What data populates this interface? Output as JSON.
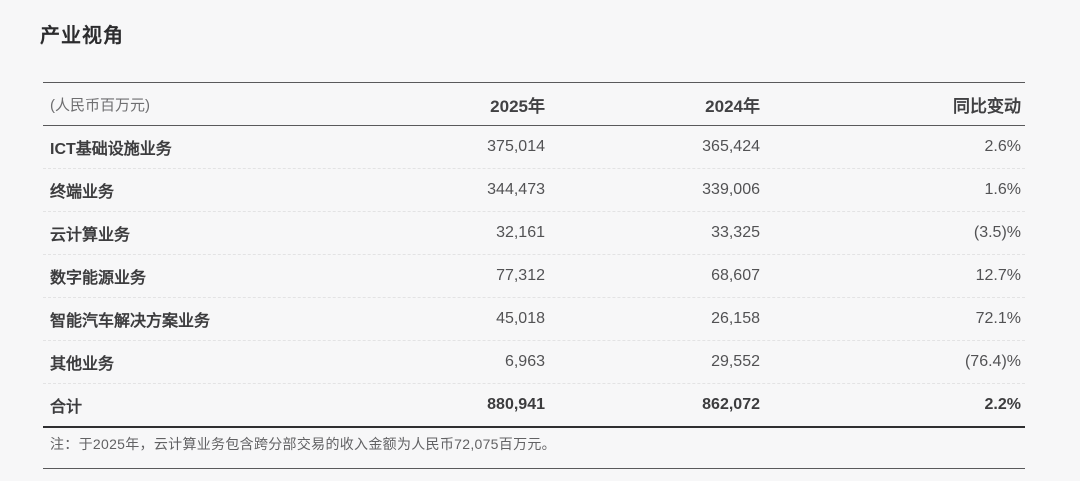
{
  "page": {
    "title": "产业视角"
  },
  "table": {
    "unit_label": "(人民币百万元)",
    "columns": {
      "y2025": "2025年",
      "y2024": "2024年",
      "yoy": "同比变动"
    },
    "rows": [
      {
        "label": "ICT基础设施业务",
        "y2025": "375,014",
        "y2024": "365,424",
        "change": "2.6%"
      },
      {
        "label": "终端业务",
        "y2025": "344,473",
        "y2024": "339,006",
        "change": "1.6%"
      },
      {
        "label": "云计算业务",
        "y2025": "32,161",
        "y2024": "33,325",
        "change": "(3.5)%"
      },
      {
        "label": "数字能源业务",
        "y2025": "77,312",
        "y2024": "68,607",
        "change": "12.7%"
      },
      {
        "label": "智能汽车解决方案业务",
        "y2025": "45,018",
        "y2024": "26,158",
        "change": "72.1%"
      },
      {
        "label": "其他业务",
        "y2025": "6,963",
        "y2024": "29,552",
        "change": "(76.4)%"
      }
    ],
    "total_row": {
      "label": "合计",
      "y2025": "880,941",
      "y2024": "862,072",
      "change": "2.2%"
    },
    "note": "注：于2025年，云计算业务包含跨分部交易的收入金额为人民币72,075百万元。"
  },
  "colors": {
    "background": "#f7f7f8",
    "title_text": "#2c2c2e",
    "label_text": "#3c3c3e",
    "value_text": "#525254",
    "muted_text": "#6e6e70",
    "rule_dark": "#59595b",
    "rule_heavy": "#2f2f31",
    "rule_dashed": "#e3e3e4"
  }
}
